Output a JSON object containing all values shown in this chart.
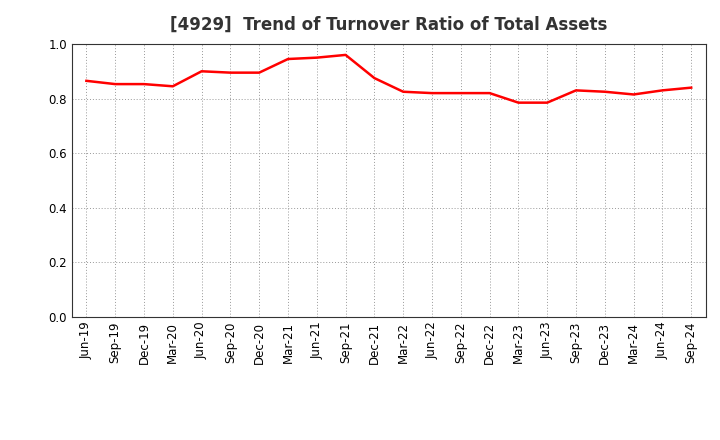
{
  "title": "[4929]  Trend of Turnover Ratio of Total Assets",
  "labels": [
    "Jun-19",
    "Sep-19",
    "Dec-19",
    "Mar-20",
    "Jun-20",
    "Sep-20",
    "Dec-20",
    "Mar-21",
    "Jun-21",
    "Sep-21",
    "Dec-21",
    "Mar-22",
    "Jun-22",
    "Sep-22",
    "Dec-22",
    "Mar-23",
    "Jun-23",
    "Sep-23",
    "Dec-23",
    "Mar-24",
    "Jun-24",
    "Sep-24"
  ],
  "values": [
    0.865,
    0.853,
    0.853,
    0.845,
    0.9,
    0.895,
    0.895,
    0.945,
    0.95,
    0.96,
    0.875,
    0.825,
    0.82,
    0.82,
    0.82,
    0.785,
    0.785,
    0.83,
    0.825,
    0.815,
    0.83,
    0.84
  ],
  "line_color": "#ff0000",
  "line_width": 1.8,
  "ylim": [
    0.0,
    1.0
  ],
  "yticks": [
    0.0,
    0.2,
    0.4,
    0.6,
    0.8,
    1.0
  ],
  "background_color": "#ffffff",
  "grid_color": "#999999",
  "title_fontsize": 12,
  "tick_fontsize": 8.5,
  "title_color": "#333333"
}
